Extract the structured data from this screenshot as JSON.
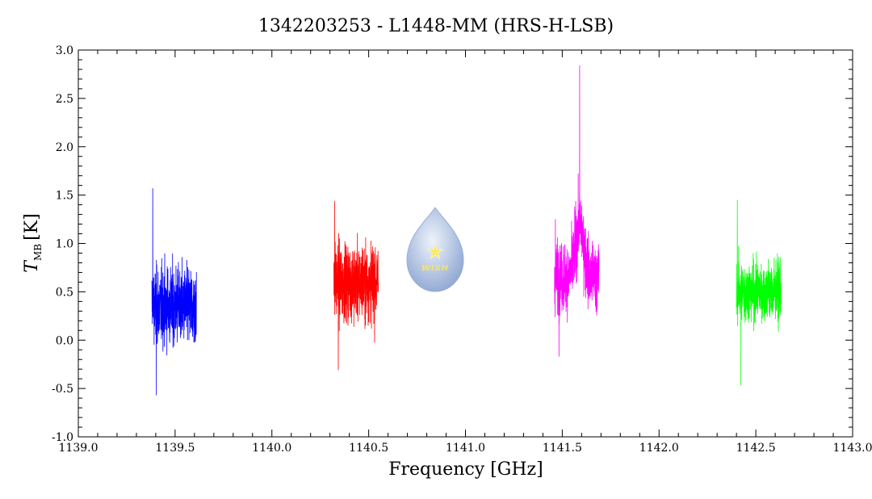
{
  "chart_data": {
    "type": "line",
    "title": "1342203253 - L1448-MM (HRS-H-LSB)",
    "xlabel": "Frequency [GHz]",
    "ylabel_main": "T",
    "ylabel_sub": "MB",
    "ylabel_unit": "[K]",
    "xlim": [
      1139.0,
      1143.0
    ],
    "ylim": [
      -1.0,
      3.0
    ],
    "x_ticks": [
      "1139.0",
      "1139.5",
      "1140.0",
      "1140.5",
      "1141.0",
      "1141.5",
      "1142.0",
      "1142.5",
      "1143.0"
    ],
    "y_ticks": [
      "-1.0",
      "-0.5",
      "0.0",
      "0.5",
      "1.0",
      "1.5",
      "2.0",
      "2.5",
      "3.0"
    ],
    "logo_text": "WISH",
    "series": [
      {
        "color": "#0000ff",
        "x_range": [
          1139.38,
          1139.61
        ],
        "baseline": 0.35,
        "noise": 0.28,
        "min": -0.57,
        "max": 1.57
      },
      {
        "color": "#ff0000",
        "x_range": [
          1140.32,
          1140.55
        ],
        "baseline": 0.6,
        "noise": 0.28,
        "min": -0.31,
        "max": 1.44
      },
      {
        "color": "#ff00ff",
        "x_range": [
          1141.46,
          1141.69
        ],
        "baseline": 0.65,
        "noise": 0.25,
        "min": -0.17,
        "max": 2.84,
        "peak_x": 1141.59
      },
      {
        "color": "#00ff00",
        "x_range": [
          1142.4,
          1142.63
        ],
        "baseline": 0.5,
        "noise": 0.22,
        "min": -0.47,
        "max": 1.45
      }
    ]
  }
}
